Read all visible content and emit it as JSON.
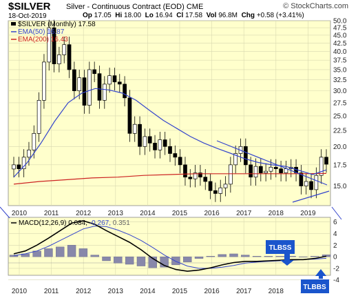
{
  "header": {
    "symbol": "$SILVER",
    "subtitle": "Silver - Continuous Contract (EOD)  CME",
    "date": "18-Oct-2019",
    "open_label": "Op",
    "open": "17.05",
    "high_label": "Hi",
    "high": "18.00",
    "low_label": "Lo",
    "low": "16.94",
    "close_label": "Cl",
    "close": "17.58",
    "vol_label": "Vol",
    "volume": "96.8M",
    "chg_label": "Chg",
    "change": "+0.58 (+3.41%)",
    "watermark": "© StockCharts.com"
  },
  "legend": {
    "price": "$SILVER (Monthly) 17.58",
    "ema50": "EMA(50) 16.87",
    "ema200": "EMA(200) 16.43"
  },
  "macd_legend": {
    "label": "MACD(12,26,9)",
    "v1": "0.084,",
    "v2": "-0.267,",
    "v3": "0.351"
  },
  "annotations": {
    "tlbss": "TLBSS",
    "tlbbs": "TLBBS"
  },
  "colors": {
    "bg": "#ffffcc",
    "ema50": "#3344cc",
    "ema200": "#cc2222",
    "macd_hist": "#8888aa",
    "trend": "#3344cc",
    "arrow": "#1a55cc"
  },
  "chart_data": [
    {
      "type": "candlestick",
      "title": "$SILVER (Monthly)",
      "x_ticks": [
        "2010",
        "2011",
        "2012",
        "2013",
        "2014",
        "2015",
        "2016",
        "2017",
        "2018",
        "2019"
      ],
      "y_ticks": [
        "15.0",
        "17.5",
        "20.0",
        "22.5",
        "25.0",
        "27.5",
        "30.0",
        "32.5",
        "35.0",
        "37.5",
        "40.0",
        "42.5",
        "45.0",
        "47.5",
        "50.0"
      ],
      "y_scale": "log",
      "ylim": [
        13.0,
        50.0
      ],
      "series": [
        {
          "name": "EMA(50)",
          "values": [
            16.0,
            17.8,
            20.5,
            24.0,
            27.5,
            29.5,
            30.5,
            30.2,
            29.5,
            28.0,
            26.0,
            24.2,
            22.8,
            21.5,
            20.5,
            19.7,
            19.0,
            18.3,
            17.8,
            17.5,
            17.3,
            16.8,
            16.3,
            16.87
          ]
        },
        {
          "name": "EMA(200)",
          "values": [
            15.2,
            15.5,
            15.7,
            15.9,
            16.0,
            16.2,
            16.3,
            16.4,
            16.4,
            16.4,
            16.4,
            16.4,
            16.43
          ]
        }
      ],
      "monthly_close": [
        17.5,
        17.0,
        18.5,
        19.5,
        22.0,
        28.0,
        37.0,
        47.5,
        36.5,
        39.0,
        42.0,
        35.0,
        30.0,
        33.0,
        27.0,
        35.0,
        34.0,
        28.0,
        31.5,
        33.5,
        32.0,
        31.5,
        28.5,
        22.0,
        23.5,
        20.0,
        21.5,
        20.5,
        19.5,
        21.0,
        20.0,
        19.0,
        18.5,
        17.5,
        16.0,
        15.8,
        16.5,
        16.0,
        15.5,
        14.5,
        14.2,
        14.8,
        15.2,
        17.5,
        19.0,
        20.0,
        17.5,
        16.0,
        17.3,
        16.5,
        16.7,
        17.2,
        17.0,
        16.5,
        17.0,
        17.2,
        16.5,
        15.0,
        15.5,
        14.6,
        16.2,
        18.5,
        17.58
      ]
    },
    {
      "type": "macd",
      "title": "MACD(12,26,9)",
      "y_ticks": [
        "-4",
        "-2",
        "0",
        "2",
        "4",
        "6"
      ],
      "ylim": [
        -3.2,
        6.8
      ],
      "macd": [
        0.5,
        1.0,
        2.0,
        3.2,
        4.5,
        5.8,
        6.2,
        5.6,
        4.5,
        3.5,
        2.5,
        1.2,
        -0.3,
        -1.5,
        -2.2,
        -2.5,
        -2.3,
        -1.9,
        -1.4,
        -1.0,
        -0.8,
        -0.8,
        -0.7,
        -0.6,
        -0.5,
        -0.5,
        -0.3,
        0.084
      ],
      "signal": [
        0.2,
        0.5,
        1.0,
        1.8,
        2.8,
        3.8,
        4.8,
        5.3,
        5.2,
        4.6,
        3.8,
        2.8,
        1.6,
        0.3,
        -0.8,
        -1.6,
        -2.0,
        -2.0,
        -1.8,
        -1.5,
        -1.1,
        -0.9,
        -0.8,
        -0.7,
        -0.6,
        -0.5,
        -0.4,
        -0.267
      ],
      "histogram": [
        0.3,
        0.5,
        1.0,
        1.4,
        1.7,
        2.0,
        1.4,
        0.3,
        -0.7,
        -1.1,
        -1.3,
        -1.6,
        -1.9,
        -1.8,
        -1.4,
        -0.9,
        -0.3,
        0.1,
        0.4,
        0.5,
        0.3,
        0.1,
        0.1,
        0.1,
        0.1,
        0.0,
        0.1,
        0.351
      ]
    }
  ]
}
